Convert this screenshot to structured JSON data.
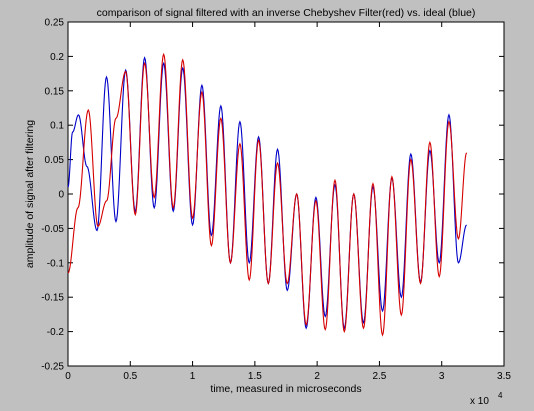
{
  "chart_data": {
    "type": "line",
    "title": "comparison of signal filtered with an inverse Chebyshev Filter(red) vs. ideal (blue)",
    "xlabel": "time, measured in microseconds",
    "ylabel": "amplitude of signal after filtering",
    "x_multiplier_label": "x 10",
    "x_multiplier_exponent": "4",
    "xlim": [
      0,
      3.5
    ],
    "ylim": [
      -0.25,
      0.25
    ],
    "xticks": [
      "0",
      "0.5",
      "1",
      "1.5",
      "2",
      "2.5",
      "3",
      "3.5"
    ],
    "yticks": [
      "0.25",
      "0.2",
      "0.15",
      "0.1",
      "0.05",
      "0",
      "-0.05",
      "-0.1",
      "-0.15",
      "-0.2",
      "-0.25"
    ],
    "grid": false,
    "series": [
      {
        "color": "#0000c8",
        "x": [
          0,
          0.037,
          0.084,
          0.152,
          0.233,
          0.309,
          0.385,
          0.463,
          0.54,
          0.615,
          0.692,
          0.768,
          0.845,
          0.921,
          1.0,
          1.075,
          1.151,
          1.227,
          1.304,
          1.38,
          1.455,
          1.53,
          1.608,
          1.682,
          1.76,
          1.836,
          1.912,
          1.99,
          2.065,
          2.143,
          2.218,
          2.294,
          2.372,
          2.448,
          2.525,
          2.6,
          2.676,
          2.752,
          2.83,
          2.905,
          2.98,
          3.058,
          3.134,
          3.2
        ],
        "y": [
          0.01,
          0.09,
          0.115,
          0.04,
          -0.053,
          0.17,
          -0.04,
          0.18,
          -0.025,
          0.198,
          -0.02,
          0.19,
          -0.025,
          0.183,
          -0.045,
          0.158,
          -0.06,
          0.128,
          -0.1,
          0.105,
          -0.1,
          0.083,
          -0.13,
          0.065,
          -0.14,
          0.0,
          -0.195,
          -0.005,
          -0.178,
          0.013,
          -0.195,
          0.0,
          -0.187,
          0.01,
          -0.17,
          0.023,
          -0.15,
          0.058,
          -0.128,
          0.063,
          -0.1,
          0.115,
          -0.1,
          -0.045
        ]
      },
      {
        "color": "#d60000",
        "x": [
          0,
          0.08,
          0.163,
          0.24,
          0.31,
          0.385,
          0.463,
          0.54,
          0.615,
          0.692,
          0.768,
          0.845,
          0.921,
          1.0,
          1.075,
          1.151,
          1.227,
          1.304,
          1.38,
          1.455,
          1.53,
          1.608,
          1.682,
          1.76,
          1.836,
          1.912,
          1.99,
          2.065,
          2.143,
          2.218,
          2.294,
          2.372,
          2.448,
          2.525,
          2.6,
          2.676,
          2.752,
          2.83,
          2.905,
          2.98,
          3.058,
          3.134,
          3.2
        ],
        "y": [
          -0.115,
          -0.02,
          0.122,
          -0.047,
          -0.01,
          0.11,
          0.178,
          -0.03,
          0.19,
          -0.005,
          0.203,
          -0.02,
          0.195,
          -0.035,
          0.148,
          -0.075,
          0.11,
          -0.1,
          0.073,
          -0.125,
          0.078,
          -0.13,
          0.045,
          -0.13,
          0.0,
          -0.19,
          -0.01,
          -0.197,
          0.02,
          -0.2,
          0.0,
          -0.195,
          0.015,
          -0.205,
          0.025,
          -0.176,
          0.05,
          -0.13,
          0.075,
          -0.12,
          0.105,
          -0.065,
          0.06
        ]
      }
    ]
  }
}
